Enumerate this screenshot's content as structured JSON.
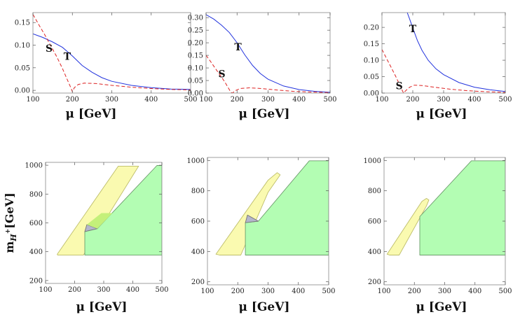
{
  "colors": {
    "T_line": "#2233dd",
    "S_line": "#dd2222",
    "yellow_fill": "#fafab0",
    "yellow_stroke": "#bdbd6a",
    "green_fill": "#b3fdb3",
    "green_stroke": "#6c9c6c",
    "overlap_fill": "#b4b6cc",
    "olive_fill": "#c4f07a"
  },
  "chart_data": [
    {
      "type": "line",
      "panel": "top-left",
      "xlabel": "μ [GeV]",
      "xlim": [
        100,
        500
      ],
      "ylim": [
        -0.006,
        0.172
      ],
      "xticks": [
        100,
        200,
        300,
        400,
        500
      ],
      "yticks": [
        0.0,
        0.05,
        0.1,
        0.15
      ],
      "ytick_labels": [
        "0.00",
        "0.05",
        "0.10",
        "0.15"
      ],
      "series": [
        {
          "name": "T",
          "style": "solid",
          "x": [
            100,
            125,
            150,
            175,
            200,
            225,
            250,
            275,
            300,
            350,
            400,
            450,
            500
          ],
          "y": [
            0.125,
            0.117,
            0.107,
            0.095,
            0.076,
            0.055,
            0.04,
            0.028,
            0.02,
            0.011,
            0.006,
            0.003,
            0.002
          ]
        },
        {
          "name": "S",
          "style": "dashed",
          "x": [
            100,
            115,
            130,
            145,
            160,
            175,
            190,
            197,
            200,
            205,
            215,
            230,
            260,
            300,
            350,
            400,
            450,
            500
          ],
          "y": [
            0.168,
            0.145,
            0.123,
            0.099,
            0.075,
            0.048,
            0.018,
            0.004,
            -0.003,
            0.006,
            0.013,
            0.016,
            0.015,
            0.011,
            0.007,
            0.004,
            0.002,
            0.001
          ]
        }
      ],
      "annotations": [
        {
          "text": "S",
          "x": 141,
          "y": 0.093
        },
        {
          "text": "T",
          "x": 187,
          "y": 0.075
        }
      ]
    },
    {
      "type": "line",
      "panel": "top-middle",
      "xlabel": "μ [GeV]",
      "xlim": [
        100,
        500
      ],
      "ylim": [
        0.0,
        0.32
      ],
      "xticks": [
        100,
        200,
        300,
        400,
        500
      ],
      "yticks": [
        0.0,
        0.05,
        0.1,
        0.15,
        0.2,
        0.25,
        0.3
      ],
      "ytick_labels": [
        "0.00",
        "0.05",
        "0.10",
        "0.15",
        "0.20",
        "0.25",
        "0.30"
      ],
      "series": [
        {
          "name": "T",
          "style": "solid",
          "x": [
            100,
            125,
            150,
            175,
            200,
            225,
            250,
            275,
            300,
            350,
            400,
            450,
            500
          ],
          "y": [
            0.312,
            0.294,
            0.27,
            0.241,
            0.2,
            0.152,
            0.11,
            0.078,
            0.055,
            0.028,
            0.014,
            0.007,
            0.003
          ]
        },
        {
          "name": "S",
          "style": "dashed",
          "x": [
            100,
            115,
            130,
            145,
            160,
            172,
            180,
            185,
            195,
            210,
            240,
            280,
            320,
            380,
            440,
            500
          ],
          "y": [
            0.15,
            0.125,
            0.098,
            0.072,
            0.045,
            0.02,
            0.003,
            0.0,
            0.01,
            0.018,
            0.021,
            0.018,
            0.013,
            0.007,
            0.004,
            0.002
          ]
        }
      ],
      "annotations": [
        {
          "text": "T",
          "x": 203,
          "y": 0.184
        },
        {
          "text": "S",
          "x": 151,
          "y": 0.077
        }
      ]
    },
    {
      "type": "line",
      "panel": "top-right",
      "xlabel": "μ [GeV]",
      "xlim": [
        100,
        500
      ],
      "ylim": [
        0.0,
        0.245
      ],
      "xticks": [
        100,
        200,
        300,
        400,
        500
      ],
      "yticks": [
        0.0,
        0.05,
        0.1,
        0.15,
        0.2
      ],
      "ytick_labels": [
        "0.00",
        "0.05",
        "0.10",
        "0.15",
        "0.20"
      ],
      "series": [
        {
          "name": "T",
          "style": "solid",
          "x": [
            182,
            190,
            200,
            215,
            230,
            250,
            275,
            300,
            350,
            400,
            450,
            500
          ],
          "y": [
            0.245,
            0.225,
            0.198,
            0.16,
            0.13,
            0.1,
            0.074,
            0.056,
            0.032,
            0.018,
            0.01,
            0.005
          ]
        },
        {
          "name": "S",
          "style": "dashed",
          "x": [
            100,
            115,
            130,
            145,
            155,
            165,
            170,
            178,
            190,
            205,
            230,
            270,
            320,
            380,
            440,
            500
          ],
          "y": [
            0.133,
            0.105,
            0.078,
            0.05,
            0.03,
            0.01,
            0.0,
            0.008,
            0.018,
            0.024,
            0.023,
            0.018,
            0.012,
            0.007,
            0.004,
            0.002
          ]
        }
      ],
      "annotations": [
        {
          "text": "T",
          "x": 200,
          "y": 0.196
        },
        {
          "text": "S",
          "x": 156,
          "y": 0.022
        }
      ]
    },
    {
      "type": "area",
      "panel": "bottom-left",
      "xlabel": "μ [GeV]",
      "ylabel": "mH+[GeV]",
      "xlim": [
        100,
        500
      ],
      "ylim": [
        180,
        1020
      ],
      "xticks": [
        100,
        200,
        300,
        400,
        500
      ],
      "yticks": [
        200,
        400,
        600,
        800,
        1000
      ],
      "regions": [
        {
          "name": "yellow",
          "fill": "yellow_fill",
          "stroke": "yellow_stroke",
          "points": [
            [
              140,
              382
            ],
            [
              142,
              376
            ],
            [
              230,
              376
            ],
            [
              420,
              994
            ],
            [
              350,
              994
            ],
            [
              140,
              382
            ]
          ]
        },
        {
          "name": "green",
          "fill": "green_fill",
          "stroke": "green_stroke",
          "points": [
            [
              235,
              376
            ],
            [
              500,
              376
            ],
            [
              500,
              998
            ],
            [
              483,
              998
            ],
            [
              278,
              560
            ],
            [
              235,
              540
            ]
          ]
        },
        {
          "name": "overlap",
          "fill": "overlap_fill",
          "stroke": "#777",
          "points": [
            [
              235,
              540
            ],
            [
              242,
              588
            ],
            [
              278,
              560
            ]
          ]
        },
        {
          "name": "olive",
          "fill": "olive_fill",
          "stroke": "none",
          "points": [
            [
              242,
              588
            ],
            [
              278,
              560
            ],
            [
              330,
              668
            ],
            [
              292,
              668
            ]
          ]
        }
      ]
    },
    {
      "type": "area",
      "panel": "bottom-middle",
      "xlabel": "μ [GeV]",
      "xlim": [
        100,
        500
      ],
      "ylim": [
        180,
        1020
      ],
      "xticks": [
        100,
        200,
        300,
        400,
        500
      ],
      "yticks": [
        200,
        400,
        600,
        800,
        1000
      ],
      "regions": [
        {
          "name": "yellow",
          "fill": "yellow_fill",
          "stroke": "yellow_stroke",
          "points": [
            [
              128,
              382
            ],
            [
              140,
              376
            ],
            [
              210,
              376
            ],
            [
              300,
              790
            ],
            [
              340,
              905
            ],
            [
              330,
              920
            ],
            [
              300,
              870
            ],
            [
              128,
              382
            ]
          ]
        },
        {
          "name": "green",
          "fill": "green_fill",
          "stroke": "green_stroke",
          "points": [
            [
              225,
              376
            ],
            [
              500,
              376
            ],
            [
              500,
              998
            ],
            [
              436,
              998
            ],
            [
              268,
              600
            ],
            [
              225,
              590
            ]
          ]
        },
        {
          "name": "overlap",
          "fill": "overlap_fill",
          "stroke": "#777",
          "points": [
            [
              225,
              590
            ],
            [
              232,
              640
            ],
            [
              268,
              600
            ]
          ]
        }
      ]
    },
    {
      "type": "area",
      "panel": "bottom-right",
      "xlabel": "μ [GeV]",
      "xlim": [
        100,
        500
      ],
      "ylim": [
        180,
        1020
      ],
      "xticks": [
        100,
        200,
        300,
        400,
        500
      ],
      "yticks": [
        200,
        400,
        600,
        800,
        1000
      ],
      "regions": [
        {
          "name": "yellow",
          "fill": "yellow_fill",
          "stroke": "yellow_stroke",
          "points": [
            [
              110,
              382
            ],
            [
              118,
              376
            ],
            [
              150,
              376
            ],
            [
              240,
              700
            ],
            [
              248,
              740
            ],
            [
              240,
              750
            ],
            [
              225,
              730
            ],
            [
              110,
              382
            ]
          ]
        },
        {
          "name": "green",
          "fill": "green_fill",
          "stroke": "green_stroke",
          "points": [
            [
              218,
              376
            ],
            [
              500,
              376
            ],
            [
              500,
              998
            ],
            [
              388,
              998
            ],
            [
              218,
              630
            ]
          ]
        }
      ]
    }
  ]
}
